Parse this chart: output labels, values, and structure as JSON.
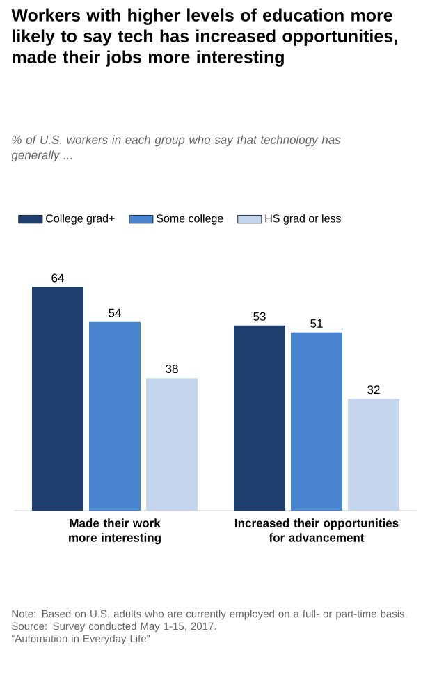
{
  "chart_data": {
    "type": "bar",
    "title": "Workers with higher levels of education more likely to say tech has increased opportunities, made their jobs more interesting",
    "subtitle": "% of U.S. workers in each group who say that technology has generally ...",
    "categories": [
      "Made their work more interesting",
      "Increased their opportunities for advancement"
    ],
    "series": [
      {
        "name": "College grad+",
        "color": "#1f3f6e",
        "values": [
          64,
          53
        ]
      },
      {
        "name": "Some college",
        "color": "#4a86d0",
        "values": [
          54,
          51
        ]
      },
      {
        "name": "HS grad or less",
        "color": "#c4d7ee",
        "values": [
          38,
          32
        ]
      }
    ],
    "data_labels": true,
    "legend": "top",
    "annotations": [
      "Note: Based on U.S. adults who are currently employed on a full- or part-time basis.",
      "Source: Survey conducted May 1-15, 2017.",
      "“Automation in Everyday Life”"
    ]
  }
}
